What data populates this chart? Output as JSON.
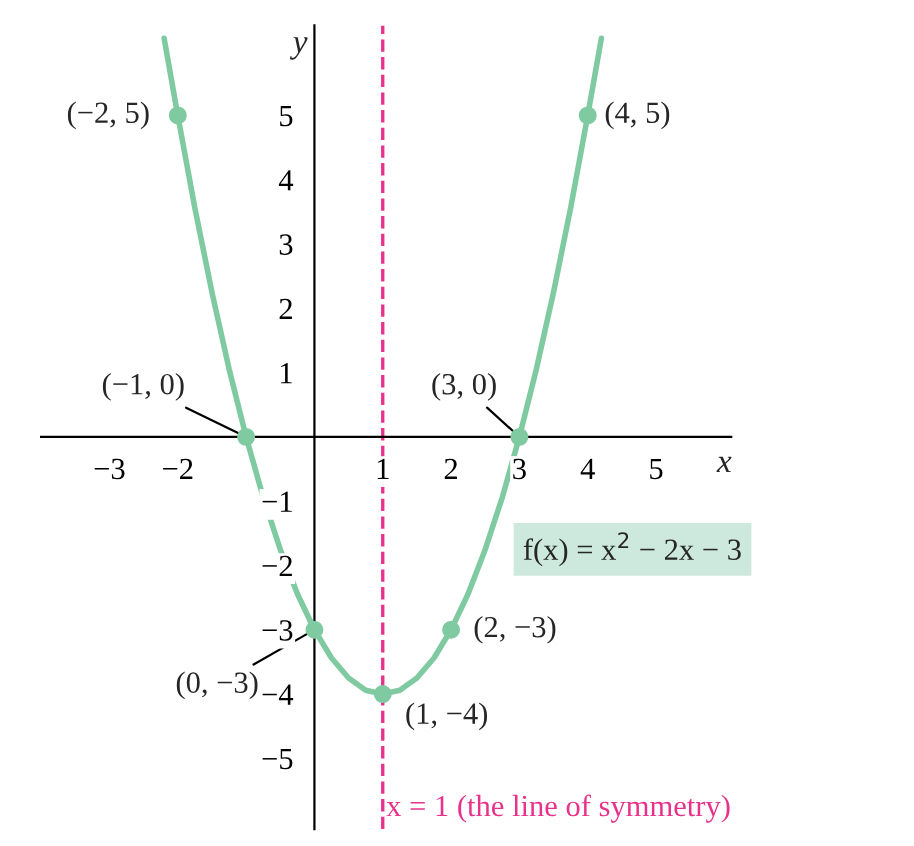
{
  "chart_data": {
    "type": "line",
    "xlabel": "x",
    "ylabel": "y",
    "xlim": [
      -4,
      6.1
    ],
    "ylim": [
      -6.1,
      6.4
    ],
    "xticks": [
      {
        "value": -3,
        "label": "−3"
      },
      {
        "value": -2,
        "label": "−2"
      },
      1,
      2,
      3,
      4,
      5
    ],
    "yticks": [
      {
        "value": -5,
        "label": "−5"
      },
      {
        "value": -4,
        "label": "−4"
      },
      {
        "value": -3,
        "label": "−3"
      },
      {
        "value": -2,
        "label": "−2"
      },
      {
        "value": -1,
        "label": "−1"
      },
      1,
      2,
      3,
      4,
      5
    ],
    "series": [
      {
        "color": "#7fcaa0",
        "marker": "none",
        "x": [
          -2.2,
          -2,
          -1.75,
          -1.5,
          -1.25,
          -1,
          -0.75,
          -0.5,
          -0.25,
          0,
          0.25,
          0.5,
          0.75,
          1,
          1.25,
          1.5,
          1.75,
          2,
          2.25,
          2.5,
          2.75,
          3,
          3.25,
          3.5,
          3.75,
          4,
          4.2
        ],
        "values": [
          6.2,
          5,
          3.56,
          2.25,
          1.06,
          0,
          -0.94,
          -1.75,
          -2.44,
          -3,
          -3.44,
          -3.75,
          -3.94,
          -4,
          -3.94,
          -3.75,
          -3.44,
          -3,
          -2.44,
          -1.75,
          -0.94,
          0,
          1.06,
          2.25,
          3.56,
          5,
          6.2
        ]
      },
      {
        "type": "scatter",
        "color": "#7fcaa0",
        "marker": "circle",
        "x": [
          -2,
          -1,
          0,
          1,
          2,
          3,
          4
        ],
        "values": [
          5,
          0,
          -3,
          -4,
          -3,
          0,
          5
        ]
      }
    ],
    "annotations": [
      {
        "text": "(−2, 5)",
        "x": -2,
        "y": 5
      },
      {
        "text": "(−1, 0)",
        "x": -1,
        "y": 0
      },
      {
        "text": "(0, −3)",
        "x": 0,
        "y": -3
      },
      {
        "text": "(1, −4)",
        "x": 1,
        "y": -4
      },
      {
        "text": "(2, −3)",
        "x": 2,
        "y": -3
      },
      {
        "text": "(3, 0)",
        "x": 3,
        "y": 0
      },
      {
        "text": "(4, 5)",
        "x": 4,
        "y": 5
      },
      "f(x) = x$^{2}$ − 2x − 3"
    ],
    "ref_lines": [
      {
        "axis": "x",
        "value": 1,
        "label": "x = 1 (the line of symmetry)",
        "color": "#e8318a",
        "line_style": "dashed"
      }
    ],
    "grid": false,
    "legend": false
  }
}
